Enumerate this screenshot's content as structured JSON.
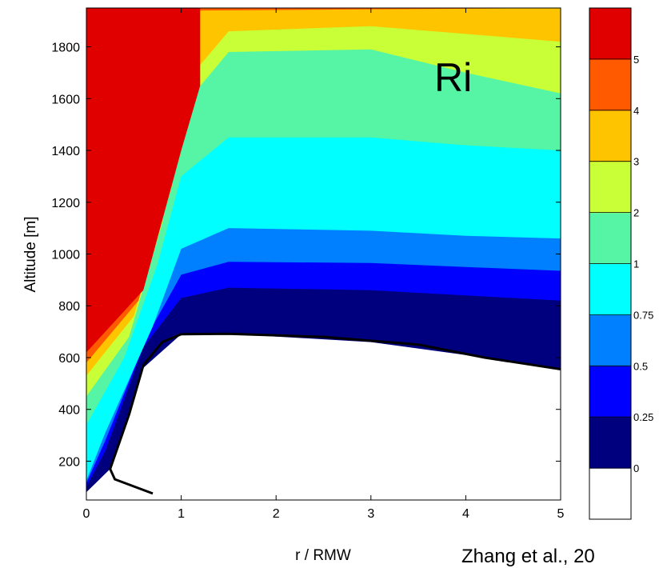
{
  "chart_data": {
    "type": "contour",
    "title": "",
    "variable_label": "Ri",
    "xlabel": "r / RMW",
    "ylabel": "Altitude [m]",
    "xlim": [
      0,
      5
    ],
    "ylim": [
      50,
      1950
    ],
    "x_ticks": [
      "0",
      "1",
      "2",
      "3",
      "4",
      "5"
    ],
    "y_ticks": [
      "200",
      "400",
      "600",
      "800",
      "1000",
      "1200",
      "1400",
      "1600",
      "1800"
    ],
    "colorbar": {
      "levels": [
        "0",
        "0.25",
        "0.5",
        "0.75",
        "1",
        "2",
        "3",
        "4",
        "5"
      ],
      "colors": [
        "#ffffff",
        "#00007f",
        "#0000ff",
        "#0080ff",
        "#00ffff",
        "#55f5a5",
        "#c8ff37",
        "#ffc400",
        "#ff5a00",
        "#e10000"
      ]
    },
    "bands": [
      {
        "level": "0",
        "color": "#ffffff",
        "boundary": [
          [
            0,
            85
          ],
          [
            0.8,
            85
          ],
          [
            0.95,
            110
          ],
          [
            1.5,
            130
          ],
          [
            3,
            132
          ],
          [
            4.5,
            120
          ],
          [
            5,
            105
          ]
        ]
      },
      {
        "level": "0.25",
        "color": "#00007f",
        "boundary": [
          [
            0,
            80
          ],
          [
            0.25,
            170
          ],
          [
            0.6,
            560
          ],
          [
            1.0,
            690
          ],
          [
            1.5,
            692
          ],
          [
            3,
            660
          ],
          [
            4,
            610
          ],
          [
            5,
            555
          ]
        ]
      },
      {
        "level": "0.5",
        "color": "#0000ff",
        "boundary": [
          [
            0,
            100
          ],
          [
            0.2,
            240
          ],
          [
            0.6,
            640
          ],
          [
            1.0,
            830
          ],
          [
            1.5,
            870
          ],
          [
            3,
            860
          ],
          [
            4,
            840
          ],
          [
            5,
            820
          ]
        ]
      },
      {
        "level": "0.75",
        "color": "#0080ff",
        "boundary": [
          [
            0,
            115
          ],
          [
            0.2,
            280
          ],
          [
            0.65,
            690
          ],
          [
            1.0,
            920
          ],
          [
            1.5,
            970
          ],
          [
            3,
            965
          ],
          [
            4,
            950
          ],
          [
            5,
            935
          ]
        ]
      },
      {
        "level": "1",
        "color": "#00ffff",
        "boundary": [
          [
            0,
            125
          ],
          [
            0.2,
            310
          ],
          [
            0.7,
            720
          ],
          [
            1.0,
            1020
          ],
          [
            1.5,
            1100
          ],
          [
            3,
            1090
          ],
          [
            4,
            1070
          ],
          [
            5,
            1060
          ]
        ]
      },
      {
        "level": "2",
        "color": "#55f5a5",
        "boundary": [
          [
            0,
            340
          ],
          [
            0.4,
            600
          ],
          [
            0.75,
            960
          ],
          [
            1.0,
            1300
          ],
          [
            1.5,
            1450
          ],
          [
            3,
            1450
          ],
          [
            4,
            1420
          ],
          [
            5,
            1400
          ]
        ]
      },
      {
        "level": "3",
        "color": "#c8ff37",
        "boundary": [
          [
            0,
            450
          ],
          [
            0.45,
            680
          ],
          [
            0.8,
            1120
          ],
          [
            1.0,
            1560
          ],
          [
            1.5,
            1780
          ],
          [
            3,
            1790
          ],
          [
            4,
            1700
          ],
          [
            5,
            1620
          ]
        ]
      },
      {
        "level": "4",
        "color": "#ffc400",
        "boundary": [
          [
            0,
            530
          ],
          [
            0.5,
            760
          ],
          [
            0.9,
            1260
          ],
          [
            1.05,
            1640
          ],
          [
            1.2,
            1730
          ],
          [
            1.5,
            1860
          ],
          [
            3,
            1880
          ],
          [
            4,
            1850
          ],
          [
            5,
            1820
          ]
        ]
      },
      {
        "level": "5",
        "color": "#ff5a00",
        "boundary": [
          [
            0,
            580
          ],
          [
            0.55,
            820
          ],
          [
            0.95,
            1340
          ],
          [
            1.1,
            1690
          ],
          [
            1.2,
            1940
          ],
          [
            5,
            1950
          ]
        ]
      },
      {
        "level": ">5",
        "color": "#e10000",
        "boundary": [
          [
            0,
            620
          ],
          [
            0.6,
            860
          ],
          [
            1.0,
            1400
          ],
          [
            1.2,
            1650
          ],
          [
            1.2,
            1950
          ]
        ]
      }
    ],
    "highlight_contour": {
      "level": "0.25",
      "color": "#000000",
      "points": [
        [
          0.7,
          75
        ],
        [
          0.3,
          130
        ],
        [
          0.25,
          170
        ],
        [
          0.45,
          380
        ],
        [
          0.6,
          570
        ],
        [
          0.8,
          660
        ],
        [
          1.0,
          690
        ],
        [
          1.5,
          692
        ],
        [
          2.5,
          680
        ],
        [
          3.5,
          650
        ],
        [
          4.2,
          600
        ],
        [
          5,
          555
        ]
      ]
    }
  },
  "citation": "Zhang et al., 20"
}
